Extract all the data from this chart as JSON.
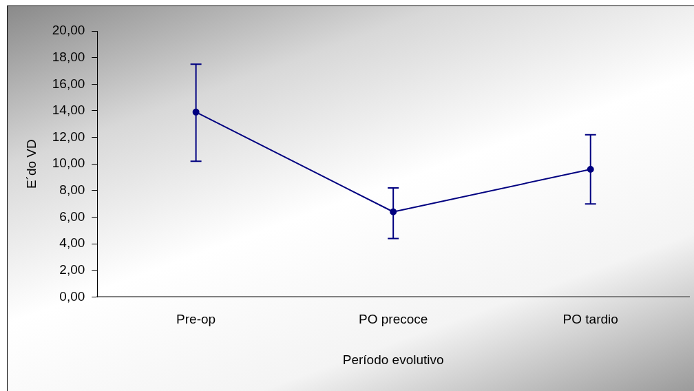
{
  "chart_data": {
    "type": "line",
    "categories": [
      "Pre-op",
      "PO precoce",
      "PO tardio"
    ],
    "values": [
      13.9,
      6.4,
      9.6
    ],
    "errors": [
      [
        10.2,
        17.5
      ],
      [
        4.4,
        8.2
      ],
      [
        7.0,
        12.2
      ]
    ],
    "color": "#000080",
    "marker": "circle",
    "line_style": "solid",
    "grid": false,
    "legend": false,
    "xlabel": "Período evolutivo",
    "ylabel": "E´do VD",
    "ylim": [
      0,
      20
    ],
    "yticks": [
      {
        "value": 0,
        "label": "0,00"
      },
      {
        "value": 2,
        "label": "2,00"
      },
      {
        "value": 4,
        "label": "4,00"
      },
      {
        "value": 6,
        "label": "6,00"
      },
      {
        "value": 8,
        "label": "8,00"
      },
      {
        "value": 10,
        "label": "10,00"
      },
      {
        "value": 12,
        "label": "12,00"
      },
      {
        "value": 14,
        "label": "14,00"
      },
      {
        "value": 16,
        "label": "16,00"
      },
      {
        "value": 18,
        "label": "18,00"
      },
      {
        "value": 20,
        "label": "20,00"
      }
    ]
  }
}
